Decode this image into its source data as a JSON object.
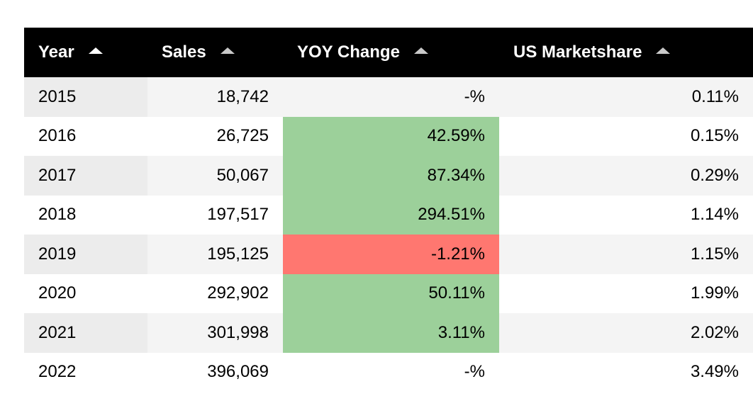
{
  "chart_data": {
    "type": "table",
    "columns": [
      "Year",
      "Sales",
      "YOY Change",
      "US Marketshare"
    ],
    "rows": [
      {
        "year": "2015",
        "sales": "18,742",
        "yoy": "-%",
        "yoy_value": null,
        "share": "0.11%"
      },
      {
        "year": "2016",
        "sales": "26,725",
        "yoy": "42.59%",
        "yoy_value": 42.59,
        "share": "0.15%"
      },
      {
        "year": "2017",
        "sales": "50,067",
        "yoy": "87.34%",
        "yoy_value": 87.34,
        "share": "0.29%"
      },
      {
        "year": "2018",
        "sales": "197,517",
        "yoy": "294.51%",
        "yoy_value": 294.51,
        "share": "1.14%"
      },
      {
        "year": "2019",
        "sales": "195,125",
        "yoy": "-1.21%",
        "yoy_value": -1.21,
        "share": "1.15%"
      },
      {
        "year": "2020",
        "sales": "292,902",
        "yoy": "50.11%",
        "yoy_value": 50.11,
        "share": "1.99%"
      },
      {
        "year": "2021",
        "sales": "301,998",
        "yoy": "3.11%",
        "yoy_value": 3.11,
        "share": "2.02%"
      },
      {
        "year": "2022",
        "sales": "396,069",
        "yoy": "-%",
        "yoy_value": null,
        "share": "3.49%"
      }
    ],
    "sorted_by": "Year",
    "sort_direction": "ascending",
    "colors": {
      "header_bg": "#000000",
      "header_text": "#ffffff",
      "positive_change": "#9cd09a",
      "negative_change": "#ff7770",
      "stripe": "#f4f4f4"
    }
  }
}
